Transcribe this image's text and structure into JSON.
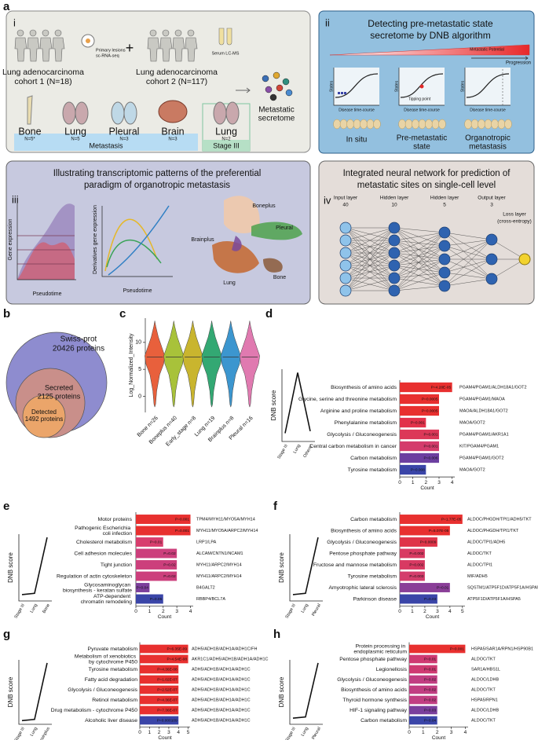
{
  "panel_a": {
    "label": "a",
    "i": {
      "label": "i",
      "scrna": [
        "Primary lesions",
        "sc-RNA-seq"
      ],
      "cohort1": [
        "Lung adenocarcinoma",
        "cohort 1 (N=18)"
      ],
      "plus": "+",
      "lcms": "Serum LC-MS",
      "cohort2": [
        "Lung adenocarcinoma",
        "cohort 2 (N=117)"
      ],
      "secretome": [
        "Metastatic",
        "secretome"
      ],
      "organs": [
        {
          "name": "Bone",
          "n": "N=5*"
        },
        {
          "name": "Lung",
          "n": "N=5"
        },
        {
          "name": "Pleural",
          "n": "N=3"
        },
        {
          "name": "Brain",
          "n": "N=3"
        },
        {
          "name": "Lung",
          "n": "N=2"
        }
      ],
      "metastasis": "Metastasis",
      "stage": "Stage III"
    },
    "ii": {
      "label": "ii",
      "title": [
        "Detecting pre-metastatic state",
        "secretome by DNB algorithm"
      ],
      "potential": "Metastatic Potential",
      "progression": "Progression",
      "states": "States",
      "time": "Disease time-course",
      "tipping": "Tipping point",
      "stages": [
        [
          "In situ"
        ],
        [
          "Pre-metastatic",
          "state"
        ],
        [
          "Organotropic",
          "metastasis"
        ]
      ]
    },
    "iii": {
      "label": "iii",
      "title": [
        "Illustrating transcriptomic patterns of the preferential",
        "paradigm of organotropic metastasis"
      ],
      "gene_expression": "Gene expression",
      "pseudotime": "Pseudotime",
      "derivatives": "Derivatives gene expression",
      "sites": [
        "Boneplus",
        "Pleural",
        "Brainplus",
        "Lung",
        "Bone"
      ]
    },
    "iv": {
      "label": "iv",
      "title": [
        "Integrated neural network for prediction of",
        "metastatic sites on single-cell level"
      ],
      "layers": [
        {
          "name": "Input layer",
          "size": 40
        },
        {
          "name": "Hidden layer",
          "size": 10
        },
        {
          "name": "Hidden layer",
          "size": 5
        },
        {
          "name": "Output layer",
          "size": 3
        }
      ],
      "loss": [
        "Loss layer",
        "(cross-entropy)"
      ]
    }
  },
  "panel_b": {
    "label": "b",
    "circles": [
      {
        "name": "Swiss-prot",
        "count": "20426 proteins",
        "color": "#8e8ccf"
      },
      {
        "name": "Secreted",
        "count": "2125 proteins",
        "color": "#c98f8a"
      },
      {
        "name": "Detected",
        "count": "1492 proteins",
        "color": "#eba56a"
      }
    ]
  },
  "panel_c": {
    "label": "c",
    "type": "violin",
    "ylabel": "Log_Normalized_Intensity",
    "ylim": [
      -3,
      14.5
    ],
    "yticks": [
      0,
      5,
      10
    ],
    "categories": [
      "Bone n=26",
      "Boneplus n=40",
      "Early_stage n=8",
      "Lung n=19",
      "Brainplus n=8",
      "Pleural n=16"
    ],
    "colors": [
      "#e8603c",
      "#a8c23a",
      "#c9b52e",
      "#33a873",
      "#3c96cf",
      "#e07ab0"
    ]
  },
  "bar_panels": [
    {
      "label": "d",
      "type": "bar",
      "dnb": {
        "ylabel": "DNB score",
        "categories": [
          "Stage III",
          "Lung",
          "Others*"
        ],
        "values": [
          0.12,
          1,
          0.15
        ],
        "ylim": [
          0,
          1.05
        ]
      },
      "categories": [
        "Biosynthesis of amino acids",
        "Glycine, serine and threonine metabolism",
        "Arginine and proline metabolism",
        "Phenylalanine metabolism",
        "Glycolysis / Gluconeogenesis",
        "Central carbon metabolism in cancer",
        "Carbon metabolism",
        "Tyrosine metabolism"
      ],
      "values": [
        4,
        3,
        3,
        2,
        3,
        3,
        3,
        2
      ],
      "p_labels": [
        "P=4.28E-05",
        "P=0.0005",
        "P=0.0005",
        "P=0.001",
        "P=0.001",
        "P=0.001",
        "P=0.006",
        "P=0.008"
      ],
      "genes": [
        "PGAM4/PGAM1/ALDH18A1/GOT2",
        "PGAM4/PGAM1/MAOA",
        "MAOA/ALDH18A1/GOT2",
        "MAOA/GOT2",
        "PGAM4/PGAM1/AKR1A1",
        "KIT/PGAM4/PGAM1",
        "PGAM4/PGAM1/GOT2",
        "MAOA/GOT2"
      ],
      "colors": [
        "#e8302f",
        "#e8302f",
        "#e8302f",
        "#e2324a",
        "#dc3858",
        "#d43c6c",
        "#6c3fa0",
        "#3a45a8"
      ],
      "xlabel": "Count",
      "xlim": [
        0,
        4.2
      ],
      "xticks": [
        0,
        1,
        2,
        3,
        4
      ]
    },
    {
      "label": "e",
      "type": "bar",
      "dnb": {
        "ylabel": "DNB score",
        "categories": [
          "Stage III",
          "Lung",
          "Bone"
        ],
        "values": [
          0.1,
          0.12,
          1
        ],
        "ylim": [
          0,
          1.05
        ]
      },
      "categories": [
        "Motor proteins",
        "Pathogenic Escherichia coli infection",
        "Cholesterol metabolism",
        "Cell adhesion molecules",
        "Tight junction",
        "Regulation of actin cytoskeleton",
        "Glycosaminoglycan biosynthesis - keratan sulfate",
        "ATP-dependent chromatin remodeling"
      ],
      "values": [
        4,
        4,
        2,
        3,
        3,
        3,
        1,
        2
      ],
      "p_labels": [
        "P=0.001",
        "P=0.001",
        "P=0.01",
        "P=0.02",
        "P=0.02",
        "P=0.02",
        "P=0.04",
        "P=0.05"
      ],
      "genes": [
        "TPM4/MYH11/MYO5A/MYH14",
        "MYH11/MYO5A/ARPC2/MYH14",
        "LRP1/LPA",
        "ALCAM/CNTN1/NCAM1",
        "MYH11/ARPC2/MYH14",
        "MYH11/ARPC2/MYH14",
        "B4GALT2",
        "RBBP4/BCL7A"
      ],
      "colors": [
        "#e8302f",
        "#e8302f",
        "#d83e6e",
        "#cc3f7c",
        "#cc3f7c",
        "#cc3f7c",
        "#7c3f9b",
        "#3a45a8"
      ],
      "xlabel": "Count",
      "xlim": [
        0,
        4.2
      ],
      "xticks": [
        0,
        1,
        2,
        3,
        4
      ]
    },
    {
      "label": "f",
      "type": "bar",
      "dnb": {
        "ylabel": "DNB score",
        "categories": [
          "Stage III",
          "Lung",
          "Pleural"
        ],
        "values": [
          0.1,
          0.12,
          1
        ],
        "ylim": [
          0,
          1.05
        ]
      },
      "categories": [
        "Carbon metabolism",
        "Biosynthesis of amino acids",
        "Glycolysis / Gluconeogenesis",
        "Pentose phosphate pathway",
        "Fructose and mannose metabolism",
        "Tyrosine metabolism",
        "Amyotrophic lateral sclerosis",
        "Parkinson disease"
      ],
      "values": [
        5,
        4,
        3,
        2,
        2,
        2,
        4,
        3
      ],
      "p_labels": [
        "P=1.77E-05",
        "P=5.07E-05",
        "P=0.0009",
        "P=0.002",
        "P=0.002",
        "P=0.003",
        "P=0.01",
        "P=0.03"
      ],
      "genes": [
        "ALDOC/PHGDH/TPI1/ADH5/TKT",
        "ALDOC/PHGDH/TPI1/TKT",
        "ALDOC/TPI1/ADH5",
        "ALDOC/TKT",
        "ALDOC/TPI1",
        "MIF/ADH5",
        "SQSTM1/ATP5F1D/ATP5F1A/HSPA5",
        "ATP5F1D/ATP5F1A/HSPA5"
      ],
      "colors": [
        "#e8302f",
        "#e8302f",
        "#df3448",
        "#d83a62",
        "#d83a62",
        "#d43d6c",
        "#8a3f98",
        "#3a45a8"
      ],
      "xlabel": "Count",
      "xlim": [
        0,
        5.2
      ],
      "xticks": [
        0,
        1,
        2,
        3,
        4,
        5
      ]
    },
    {
      "label": "g",
      "type": "bar",
      "dnb": {
        "ylabel": "DNB score",
        "categories": [
          "Stage III",
          "Lung",
          "Brainplus"
        ],
        "values": [
          0.06,
          0.08,
          1
        ],
        "ylim": [
          0,
          1.05
        ]
      },
      "categories": [
        "Pyruvate metabolism",
        "Metabolism of xenobiotics by cytochrome P450",
        "Tyrosine metabolism",
        "Fatty acid degradation",
        "Glycolysis / Gluconeogenesis",
        "Retinol metabolism",
        "Drug metabolism - cytochrome P450",
        "Alcoholic liver disease"
      ],
      "values": [
        5,
        5,
        4,
        4,
        4,
        4,
        4,
        4
      ],
      "p_labels": [
        "P=6.35E-09",
        "P=4.54E-08",
        "P=4.36E-08",
        "P=1.02E-07",
        "P=2.52E-07",
        "P=4.36E-07",
        "P=7.36E-07",
        "P=0.000109"
      ],
      "genes": [
        "ADH5/ADH1B/ADH1A/ADH1C/FH",
        "AKR1C1/ADH5/ADH1B/ADH1A/ADH1C",
        "ADH5/ADH1B/ADH1A/ADH1C",
        "ADH5/ADH1B/ADH1A/ADH1C",
        "ADH5/ADH1B/ADH1A/ADH1C",
        "ADH5/ADH1B/ADH1A/ADH1C",
        "ADH5/ADH1B/ADH1A/ADH1C",
        "ADH5/ADH1B/ADH1A/ADH1C"
      ],
      "colors": [
        "#e8302f",
        "#e8302f",
        "#e8302f",
        "#e8302f",
        "#e8302f",
        "#e8302f",
        "#e8302f",
        "#3a45a8"
      ],
      "xlabel": "Count",
      "xlim": [
        0,
        5.2
      ],
      "xticks": [
        0,
        1,
        2,
        3,
        4,
        5
      ]
    },
    {
      "label": "h",
      "type": "bar",
      "dnb": {
        "ylabel": "DNB score",
        "categories": [
          "Stage III",
          "Lung",
          "Pleural"
        ],
        "values": [
          0.1,
          0.12,
          1
        ],
        "ylim": [
          0,
          1.05
        ]
      },
      "categories": [
        "Protein processing in endoplasmic reticulum",
        "Pentose phosphate pathway",
        "Legionellosis",
        "Glycolysis / Gluconeogenesis",
        "Biosynthesis of amino acids",
        "Thyroid hormone synthesis",
        "HIF-1 signaling pathway",
        "Carbon metabolism"
      ],
      "values": [
        4,
        2,
        2,
        2,
        2,
        2,
        2,
        2
      ],
      "p_labels": [
        "P=0.001",
        "P=0.01",
        "P=0.01",
        "P=0.02",
        "P=0.02",
        "P=0.02",
        "P=0.03",
        "P=0.04"
      ],
      "genes": [
        "HSPA5/SAR1A/RPN1/HSP90B1",
        "ALDOC/TKT",
        "SAR1A/HBS1L",
        "ALDOC/LDHB",
        "ALDOC/TKT",
        "HSPA5/RPN1",
        "ALDOC/LDHB",
        "ALDOC/TKT"
      ],
      "colors": [
        "#e8302f",
        "#cf3a72",
        "#cf3a72",
        "#c13e82",
        "#c13e82",
        "#c13e82",
        "#7a3f9c",
        "#3a45a8"
      ],
      "xlabel": "Count",
      "xlim": [
        0,
        4.2
      ],
      "xticks": [
        0,
        1,
        2,
        3,
        4
      ]
    }
  ]
}
